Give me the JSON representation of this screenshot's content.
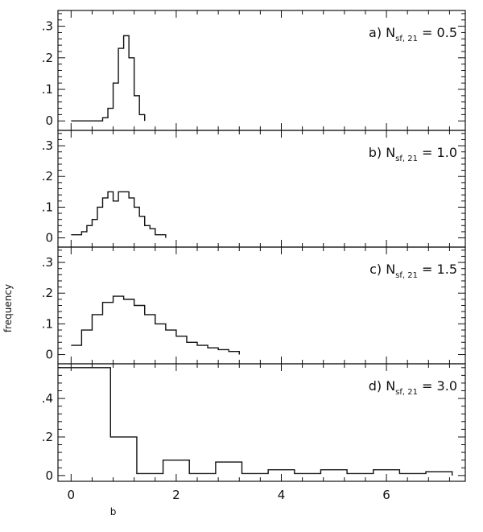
{
  "chart_data": {
    "type": "histogram",
    "xlabel": "b",
    "ylabel": "frequency",
    "xlim": [
      -0.25,
      7.5
    ],
    "xticks": [
      0,
      2,
      4,
      6
    ],
    "xtick_labels": [
      "0",
      "2",
      "4",
      "6"
    ],
    "panels": [
      {
        "label_prefix": "a)",
        "label_var": "N",
        "label_sub": "sf, 21",
        "label_value": "= 0.5",
        "ylim": [
          -0.03,
          0.35
        ],
        "yticks": [
          0,
          0.1,
          0.2,
          0.3
        ],
        "ytick_labels": [
          "0",
          ".1",
          ".2",
          ".3"
        ],
        "bin_width": 0.1,
        "bin_start": 0,
        "values": [
          0,
          0,
          0,
          0,
          0,
          0,
          0.01,
          0.04,
          0.12,
          0.23,
          0.27,
          0.2,
          0.08,
          0.02
        ]
      },
      {
        "label_prefix": "b)",
        "label_var": "N",
        "label_sub": "sf, 21",
        "label_value": "= 1.0",
        "ylim": [
          -0.03,
          0.35
        ],
        "yticks": [
          0,
          0.1,
          0.2,
          0.3
        ],
        "ytick_labels": [
          "0",
          ".1",
          ".2",
          ".3"
        ],
        "bin_width": 0.1,
        "bin_start": 0,
        "values": [
          0.01,
          0.01,
          0.02,
          0.04,
          0.06,
          0.1,
          0.13,
          0.15,
          0.12,
          0.15,
          0.15,
          0.13,
          0.1,
          0.07,
          0.04,
          0.03,
          0.01,
          0.01
        ]
      },
      {
        "label_prefix": "c)",
        "label_var": "N",
        "label_sub": "sf, 21",
        "label_value": "= 1.5",
        "ylim": [
          -0.03,
          0.35
        ],
        "yticks": [
          0,
          0.1,
          0.2,
          0.3
        ],
        "ytick_labels": [
          "0",
          ".1",
          ".2",
          ".3"
        ],
        "bin_width": 0.2,
        "bin_start": 0,
        "values": [
          0.03,
          0.08,
          0.13,
          0.17,
          0.19,
          0.18,
          0.16,
          0.13,
          0.1,
          0.08,
          0.06,
          0.04,
          0.03,
          0.022,
          0.016,
          0.01
        ]
      },
      {
        "label_prefix": "d)",
        "label_var": "N",
        "label_sub": "sf, 21",
        "label_value": "=   3.0",
        "ylim": [
          -0.03,
          0.58
        ],
        "yticks": [
          0,
          0.2,
          0.4
        ],
        "ytick_labels": [
          "0",
          ".2",
          ".4"
        ],
        "bin_width": 0.5,
        "bin_start": -0.25,
        "values": [
          0.56,
          0.56,
          0.2,
          0.01,
          0.08,
          0.01,
          0.07,
          0.01,
          0.03,
          0.01,
          0.03,
          0.01,
          0.03,
          0.01,
          0.02
        ]
      }
    ]
  }
}
